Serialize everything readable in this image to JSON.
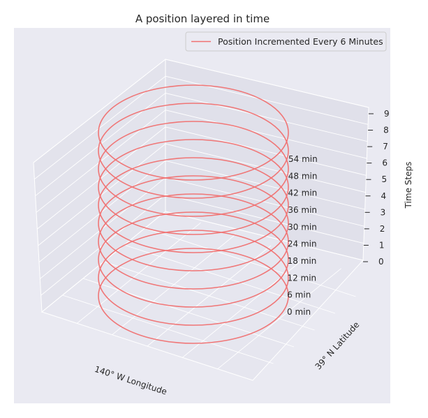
{
  "chart_data": {
    "type": "line",
    "title": "A position layered in time",
    "xlabel": "140° W Longitude",
    "ylabel": "39° N Latitude",
    "zlabel": "Time Steps",
    "zlim": [
      0,
      9
    ],
    "z_ticks": [
      "0",
      "1",
      "2",
      "3",
      "4",
      "5",
      "6",
      "7",
      "8",
      "9"
    ],
    "legend": {
      "placement": "top-right"
    },
    "series": [
      {
        "name": "Position Incremented Every 6 Minutes",
        "color": "#f07070",
        "shape": "circle",
        "levels": [
          0,
          1,
          2,
          3,
          4,
          5,
          6,
          7,
          8,
          9
        ]
      }
    ],
    "annotations": [
      {
        "text": "0 min",
        "z": 0
      },
      {
        "text": "6 min",
        "z": 1
      },
      {
        "text": "12 min",
        "z": 2
      },
      {
        "text": "18 min",
        "z": 3
      },
      {
        "text": "24 min",
        "z": 4
      },
      {
        "text": "30 min",
        "z": 5
      },
      {
        "text": "36 min",
        "z": 6
      },
      {
        "text": "42 min",
        "z": 7
      },
      {
        "text": "48 min",
        "z": 8
      },
      {
        "text": "54 min",
        "z": 9
      }
    ],
    "grid": true,
    "colors": {
      "background": "#eaeaf2",
      "line": "#f07070"
    }
  }
}
